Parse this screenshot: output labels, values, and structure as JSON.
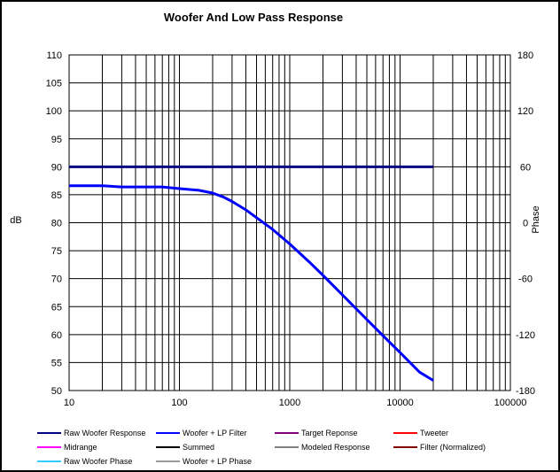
{
  "chart_data": {
    "type": "line",
    "title": "Woofer  And  Low Pass  Response",
    "xlabel": "",
    "ylabel": "dB",
    "y2label": "Phase",
    "x_scale": "log",
    "xlim": [
      10,
      100000
    ],
    "ylim": [
      50,
      110
    ],
    "y2lim": [
      -180,
      180
    ],
    "grid": true,
    "x_tick_labels": [
      "10",
      "100",
      "1000",
      "10000",
      "100000"
    ],
    "y_tick_labels": [
      "50",
      "55",
      "60",
      "65",
      "70",
      "75",
      "80",
      "85",
      "90",
      "95",
      "100",
      "105",
      "110"
    ],
    "y2_tick_labels": [
      "-180",
      "-120",
      "-60",
      "0",
      "60",
      "120",
      "180"
    ],
    "legend_position": "bottom",
    "legend": [
      {
        "name": "Raw Woofer Response",
        "color": "#000080"
      },
      {
        "name": "Woofer + LP Filter",
        "color": "#0000ff"
      },
      {
        "name": "Target Reponse",
        "color": "#800080"
      },
      {
        "name": "Tweeter",
        "color": "#ff0000"
      },
      {
        "name": "Midrange",
        "color": "#ff00ff"
      },
      {
        "name": "Summed",
        "color": "#000000"
      },
      {
        "name": "Modeled Response",
        "color": "#808080"
      },
      {
        "name": "Filter (Normalized)",
        "color": "#800000"
      },
      {
        "name": "Raw Woofer Phase",
        "color": "#33ccff"
      },
      {
        "name": "Woofer + LP  Phase",
        "color": "#999999"
      }
    ],
    "series": [
      {
        "name": "Raw Woofer Response",
        "color": "#000080",
        "x": [
          10,
          20000
        ],
        "y": [
          90,
          90
        ]
      },
      {
        "name": "Woofer + LP Filter",
        "color": "#0000ff",
        "x": [
          10,
          20,
          30,
          50,
          70,
          100,
          150,
          200,
          250,
          300,
          400,
          500,
          700,
          1000,
          1500,
          2000,
          3000,
          5000,
          7000,
          10000,
          15000,
          20000
        ],
        "y": [
          86.6,
          86.6,
          86.4,
          86.4,
          86.4,
          86.1,
          85.8,
          85.3,
          84.6,
          83.8,
          82.3,
          80.9,
          78.8,
          76.2,
          73.0,
          70.6,
          67.1,
          62.7,
          59.8,
          56.8,
          53.3,
          51.8
        ]
      }
    ]
  }
}
